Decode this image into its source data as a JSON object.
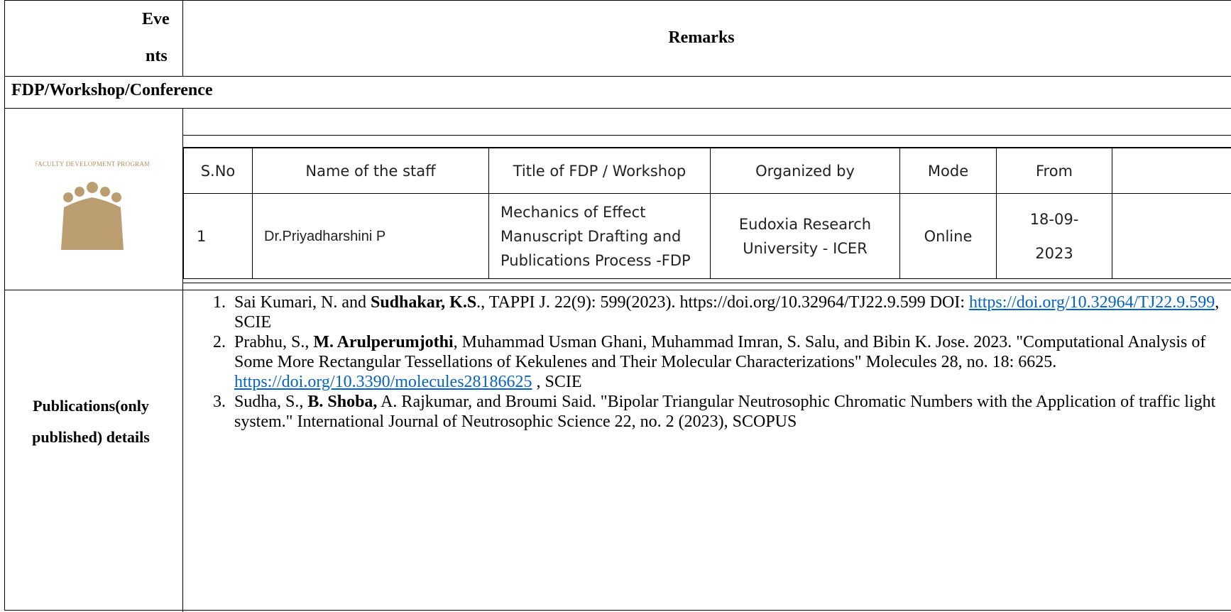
{
  "header": {
    "events": [
      "Eve",
      "nts"
    ],
    "remarks": "Remarks"
  },
  "section": "FDP/Workshop/Conference",
  "fdp": {
    "image_caption": "Faculty Development Program",
    "columns": [
      "S.No",
      "Name of the staff",
      "Title of FDP / Workshop",
      "Organized by",
      "Mode",
      "From"
    ],
    "rows": [
      [
        "1",
        "Dr.Priyadharshini P",
        "Mechanics of Effect Manuscript Drafting and Publications Process -FDP",
        "Eudoxia Research University - ICER",
        "Online",
        "18-09-2023"
      ]
    ]
  },
  "publications": {
    "label": "Publications(only published) details",
    "items": [
      {
        "number": "1.",
        "parts": [
          {
            "text": "Sai Kumari, N. and "
          },
          {
            "text": "Sudhakar, K.S",
            "bold": true
          },
          {
            "text": "., TAPPI J. 22(9): 599(2023). https://doi.org/10.32964/TJ22.9.599 DOI: "
          },
          {
            "text": "https://doi.org/10.32964/TJ22.9.599",
            "link": true
          },
          {
            "text": ", SCIE"
          }
        ]
      },
      {
        "number": "2.",
        "parts": [
          {
            "text": "Prabhu, S., "
          },
          {
            "text": "M. Arulperumjothi",
            "bold": true
          },
          {
            "text": ", Muhammad Usman Ghani, Muhammad Imran, S. Salu, and Bibin K. Jose. 2023. \"Computational Analysis of Some More Rectangular Tessellations of Kekulenes and Their Molecular Characterizations\" Molecules 28, no. 18: 6625. "
          },
          {
            "text": "https://doi.org/10.3390/molecules28186625",
            "link": true
          },
          {
            "text": " , SCIE"
          }
        ]
      },
      {
        "number": "3.",
        "parts": [
          {
            "text": "Sudha, S., "
          },
          {
            "text": "B. Shoba,",
            "bold": true
          },
          {
            "text": " A. Rajkumar, and Broumi Said. \"Bipolar Triangular Neutrosophic Chromatic Numbers with the Application of traffic light system.\" International Journal of Neutrosophic Science 22, no. 2 (2023), SCOPUS"
          }
        ]
      }
    ]
  }
}
